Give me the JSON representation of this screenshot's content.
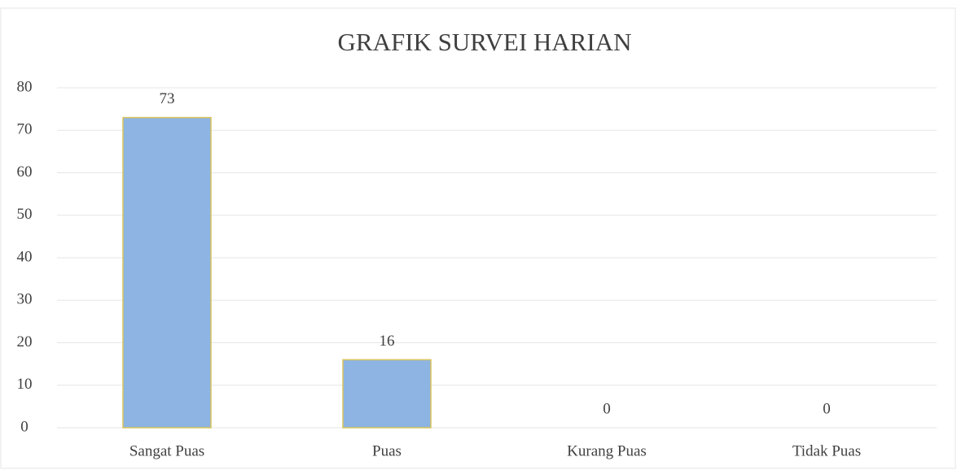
{
  "chart_data": {
    "type": "bar",
    "title": "GRAFIK SURVEI HARIAN",
    "categories": [
      "Sangat Puas",
      "Puas",
      "Kurang Puas",
      "Tidak Puas"
    ],
    "values": [
      73,
      16,
      0,
      0
    ],
    "color": "#8db4e2",
    "ylim": [
      0,
      80
    ],
    "yticks": [
      0,
      10,
      20,
      30,
      40,
      50,
      60,
      70,
      80
    ],
    "grid": true
  }
}
